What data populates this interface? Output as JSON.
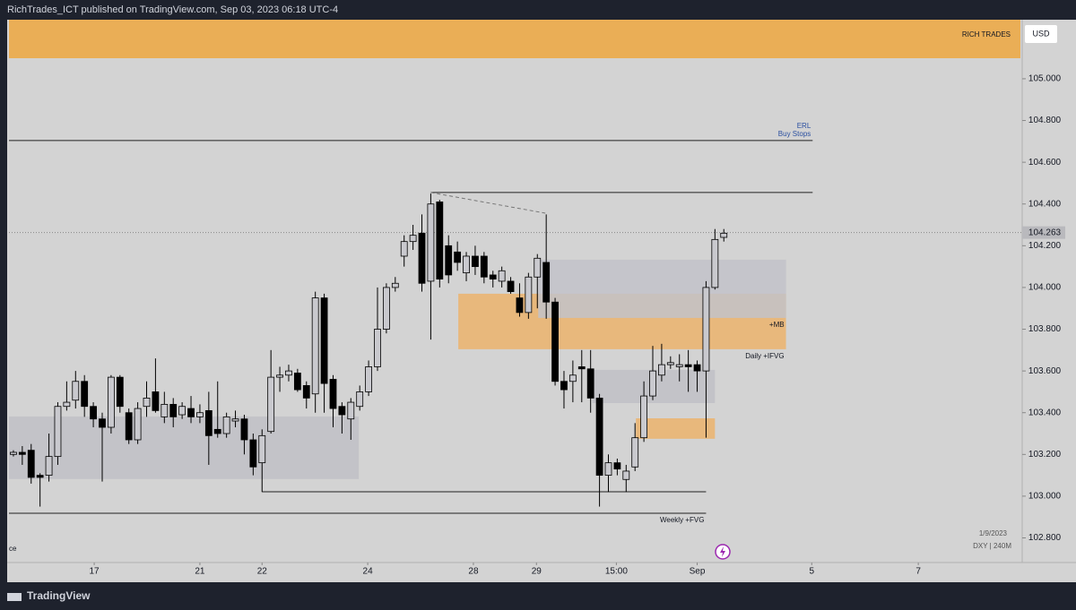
{
  "header": "RichTrades_ICT published on TradingView.com, Sep 03, 2023 06:18 UTC-4",
  "footer": "TradingView",
  "chart_data": {
    "type": "candlestick",
    "banner": "RICH TRADES",
    "currency": "USD",
    "date_note": "1/9/2023",
    "symbol": "DXY | 240M",
    "legend_fragment": "ce",
    "up_color": "#c9c9ce",
    "down_color": "#000000",
    "xlim": [
      -0.5,
      113.6
    ],
    "ylim": [
      102.682,
      105.283
    ],
    "xticks": [
      {
        "value": 9.1,
        "label": "17"
      },
      {
        "value": 21.0,
        "label": "21"
      },
      {
        "value": 28.0,
        "label": "22"
      },
      {
        "value": 39.9,
        "label": "24"
      },
      {
        "value": 51.8,
        "label": "28"
      },
      {
        "value": 58.9,
        "label": "29"
      },
      {
        "value": 67.9,
        "label": "15:00"
      },
      {
        "value": 77.0,
        "label": "Sep"
      },
      {
        "value": 89.9,
        "label": "5"
      },
      {
        "value": 101.9,
        "label": "7"
      }
    ],
    "yticks": [
      {
        "value": 102.8,
        "label": "102.800"
      },
      {
        "value": 103.0,
        "label": "103.000"
      },
      {
        "value": 103.2,
        "label": "103.200"
      },
      {
        "value": 103.4,
        "label": "103.400"
      },
      {
        "value": 103.6,
        "label": "103.600"
      },
      {
        "value": 103.8,
        "label": "103.800"
      },
      {
        "value": 104.0,
        "label": "104.000"
      },
      {
        "value": 104.2,
        "label": "104.200"
      },
      {
        "value": 104.4,
        "label": "104.400"
      },
      {
        "value": 104.6,
        "label": "104.600"
      },
      {
        "value": 104.8,
        "label": "104.800"
      },
      {
        "value": 105.0,
        "label": "105.000"
      }
    ],
    "last_price": 104.263,
    "zones": [
      {
        "x0": -0.5,
        "x1": 38.9,
        "y0": 103.082,
        "y1": 103.382,
        "color": "#bfbfc6"
      },
      {
        "x0": 50.1,
        "x1": 87.0,
        "y0": 103.704,
        "y1": 103.97,
        "color": "#ebb36c",
        "label": "Daily +IFVG"
      },
      {
        "x0": 59.1,
        "x1": 87.0,
        "y0": 103.854,
        "y1": 104.133,
        "color": "#c2c2c9",
        "label": "+MB"
      },
      {
        "x0": 65.2,
        "x1": 79.0,
        "y0": 103.446,
        "y1": 103.605,
        "color": "#bfbfc6"
      },
      {
        "x0": 70.1,
        "x1": 79.0,
        "y0": 103.275,
        "y1": 103.373,
        "color": "#ebb36c"
      }
    ],
    "lines": [
      {
        "x0": -0.5,
        "x1": 90.0,
        "y0": 104.704,
        "y1": 104.704,
        "label": "ERL",
        "label2": "Buy Stops"
      },
      {
        "x0": 47.0,
        "x1": 90.0,
        "y0": 104.455,
        "y1": 104.455
      },
      {
        "x0": 47.0,
        "x1": 59.9,
        "y0": 104.455,
        "y1": 104.356,
        "dashed": true
      },
      {
        "x0": 28.0,
        "x1": 78.0,
        "y0": 103.021,
        "y1": 103.021
      },
      {
        "x0": -0.5,
        "x1": 78.0,
        "y0": 102.918,
        "y1": 102.918,
        "label": "Weekly +FVG"
      }
    ],
    "candles": [
      [
        103.2,
        103.22,
        103.19,
        103.21
      ],
      [
        103.21,
        103.24,
        103.15,
        103.2
      ],
      [
        103.22,
        103.25,
        103.06,
        103.09
      ],
      [
        103.1,
        103.11,
        102.95,
        103.09
      ],
      [
        103.1,
        103.3,
        103.07,
        103.19
      ],
      [
        103.19,
        103.45,
        103.15,
        103.43
      ],
      [
        103.43,
        103.55,
        103.41,
        103.45
      ],
      [
        103.46,
        103.6,
        103.42,
        103.55
      ],
      [
        103.55,
        103.58,
        103.38,
        103.43
      ],
      [
        103.43,
        103.45,
        103.33,
        103.37
      ],
      [
        103.37,
        103.4,
        103.07,
        103.33
      ],
      [
        103.33,
        103.58,
        103.3,
        103.57
      ],
      [
        103.57,
        103.58,
        103.4,
        103.43
      ],
      [
        103.4,
        103.42,
        103.25,
        103.27
      ],
      [
        103.27,
        103.45,
        103.25,
        103.42
      ],
      [
        103.43,
        103.55,
        103.38,
        103.47
      ],
      [
        103.5,
        103.66,
        103.4,
        103.41
      ],
      [
        103.38,
        103.5,
        103.35,
        103.44
      ],
      [
        103.44,
        103.47,
        103.33,
        103.38
      ],
      [
        103.39,
        103.45,
        103.37,
        103.43
      ],
      [
        103.42,
        103.48,
        103.35,
        103.38
      ],
      [
        103.38,
        103.44,
        103.35,
        103.4
      ],
      [
        103.41,
        103.5,
        103.15,
        103.29
      ],
      [
        103.32,
        103.55,
        103.28,
        103.3
      ],
      [
        103.3,
        103.4,
        103.28,
        103.38
      ],
      [
        103.36,
        103.41,
        103.33,
        103.37
      ],
      [
        103.37,
        103.39,
        103.2,
        103.27
      ],
      [
        103.27,
        103.3,
        103.1,
        103.14
      ],
      [
        103.16,
        103.32,
        103.02,
        103.29
      ],
      [
        103.31,
        103.7,
        103.3,
        103.57
      ],
      [
        103.57,
        103.62,
        103.5,
        103.58
      ],
      [
        103.58,
        103.63,
        103.55,
        103.6
      ],
      [
        103.59,
        103.61,
        103.5,
        103.51
      ],
      [
        103.53,
        103.55,
        103.42,
        103.47
      ],
      [
        103.49,
        103.98,
        103.4,
        103.95
      ],
      [
        103.95,
        103.97,
        103.4,
        103.54
      ],
      [
        103.56,
        103.58,
        103.33,
        103.42
      ],
      [
        103.43,
        103.45,
        103.3,
        103.39
      ],
      [
        103.37,
        103.47,
        103.27,
        103.45
      ],
      [
        103.43,
        103.53,
        103.41,
        103.5
      ],
      [
        103.5,
        103.65,
        103.48,
        103.62
      ],
      [
        103.62,
        104.0,
        103.6,
        103.8
      ],
      [
        103.8,
        104.02,
        103.78,
        104.0
      ],
      [
        104.0,
        104.05,
        103.98,
        104.02
      ],
      [
        104.15,
        104.25,
        104.1,
        104.22
      ],
      [
        104.22,
        104.3,
        104.18,
        104.25
      ],
      [
        104.26,
        104.35,
        103.98,
        104.02
      ],
      [
        104.03,
        104.45,
        103.75,
        104.4
      ],
      [
        104.41,
        104.42,
        104.0,
        104.04
      ],
      [
        104.2,
        104.25,
        104.02,
        104.06
      ],
      [
        104.17,
        104.22,
        104.08,
        104.12
      ],
      [
        104.07,
        104.17,
        104.03,
        104.15
      ],
      [
        104.15,
        104.2,
        104.06,
        104.1
      ],
      [
        104.15,
        104.17,
        104.02,
        104.05
      ],
      [
        104.06,
        104.08,
        104.0,
        104.04
      ],
      [
        104.03,
        104.1,
        104.0,
        104.08
      ],
      [
        104.03,
        104.05,
        103.97,
        103.98
      ],
      [
        103.95,
        104.02,
        103.86,
        103.88
      ],
      [
        103.88,
        104.07,
        103.85,
        104.05
      ],
      [
        104.05,
        104.16,
        103.9,
        104.14
      ],
      [
        104.12,
        104.35,
        103.85,
        103.93
      ],
      [
        103.93,
        103.95,
        103.53,
        103.55
      ],
      [
        103.55,
        103.6,
        103.42,
        103.51
      ],
      [
        103.55,
        103.65,
        103.45,
        103.58
      ],
      [
        103.62,
        103.7,
        103.45,
        103.61
      ],
      [
        103.61,
        103.7,
        103.4,
        103.47
      ],
      [
        103.47,
        103.49,
        102.95,
        103.1
      ],
      [
        103.1,
        103.2,
        103.02,
        103.16
      ],
      [
        103.16,
        103.18,
        103.1,
        103.13
      ],
      [
        103.08,
        103.15,
        103.02,
        103.12
      ],
      [
        103.14,
        103.35,
        103.12,
        103.28
      ],
      [
        103.28,
        103.55,
        103.26,
        103.48
      ],
      [
        103.48,
        103.72,
        103.46,
        103.6
      ],
      [
        103.58,
        103.73,
        103.55,
        103.63
      ],
      [
        103.63,
        103.67,
        103.61,
        103.64
      ],
      [
        103.62,
        103.68,
        103.55,
        103.63
      ],
      [
        103.63,
        103.7,
        103.5,
        103.62
      ],
      [
        103.63,
        103.65,
        103.5,
        103.6
      ],
      [
        103.6,
        104.03,
        103.28,
        104.0
      ],
      [
        104.0,
        104.28,
        103.99,
        104.23
      ],
      [
        104.24,
        104.28,
        104.22,
        104.26
      ]
    ]
  }
}
